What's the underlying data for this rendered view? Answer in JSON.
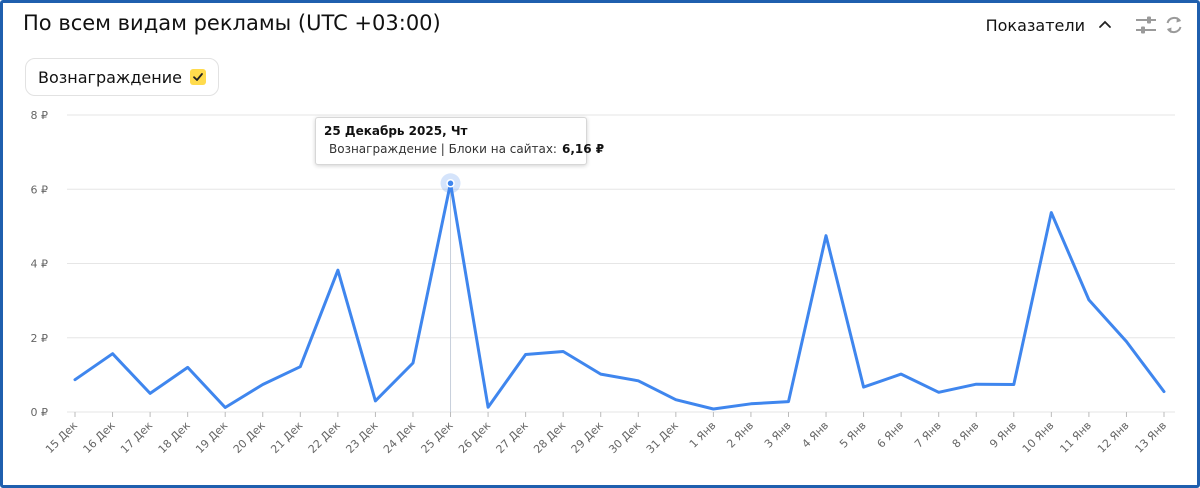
{
  "widget": {
    "title": "По всем видам рекламы (UTC +03:00)",
    "metrics_label": "Показатели",
    "icons": [
      "chevron-up-icon",
      "sliders-icon",
      "refresh-icon"
    ]
  },
  "chip": {
    "label": "Вознаграждение",
    "check_color": "#ffdb4d",
    "checked": true
  },
  "colors": {
    "series": "#3f86ee",
    "frame": "#1f5fae",
    "grid": "#e6e6e6"
  },
  "tooltip": {
    "date": "25 Декабрь 2025, Чт",
    "series_label": "Вознаграждение | Блоки на сайтах:",
    "value": "6,16 ₽",
    "index": 10
  },
  "chart_data": {
    "type": "line",
    "categories": [
      "15 Дек",
      "16 Дек",
      "17 Дек",
      "18 Дек",
      "19 Дек",
      "20 Дек",
      "21 Дек",
      "22 Дек",
      "23 Дек",
      "24 Дек",
      "25 Дек",
      "26 Дек",
      "27 Дек",
      "28 Дек",
      "29 Дек",
      "30 Дек",
      "31 Дек",
      "1 Янв",
      "2 Янв",
      "3 Янв",
      "4 Янв",
      "5 Янв",
      "6 Янв",
      "7 Янв",
      "8 Янв",
      "9 Янв",
      "10 Янв",
      "11 Янв",
      "12 Янв",
      "13 Янв"
    ],
    "series": [
      {
        "name": "Вознаграждение | Блоки на сайтах",
        "values": [
          0.87,
          1.57,
          0.5,
          1.2,
          0.12,
          0.74,
          1.22,
          3.82,
          0.3,
          1.32,
          6.16,
          0.13,
          1.55,
          1.63,
          1.02,
          0.84,
          0.33,
          0.08,
          0.22,
          0.28,
          4.75,
          0.67,
          1.02,
          0.53,
          0.75,
          0.74,
          5.37,
          3.02,
          1.9,
          0.55
        ]
      }
    ],
    "y_ticks": [
      "0 ₽",
      "2 ₽",
      "4 ₽",
      "6 ₽",
      "8 ₽"
    ],
    "ylim": [
      0,
      8
    ],
    "grid": true,
    "legend": "none"
  }
}
